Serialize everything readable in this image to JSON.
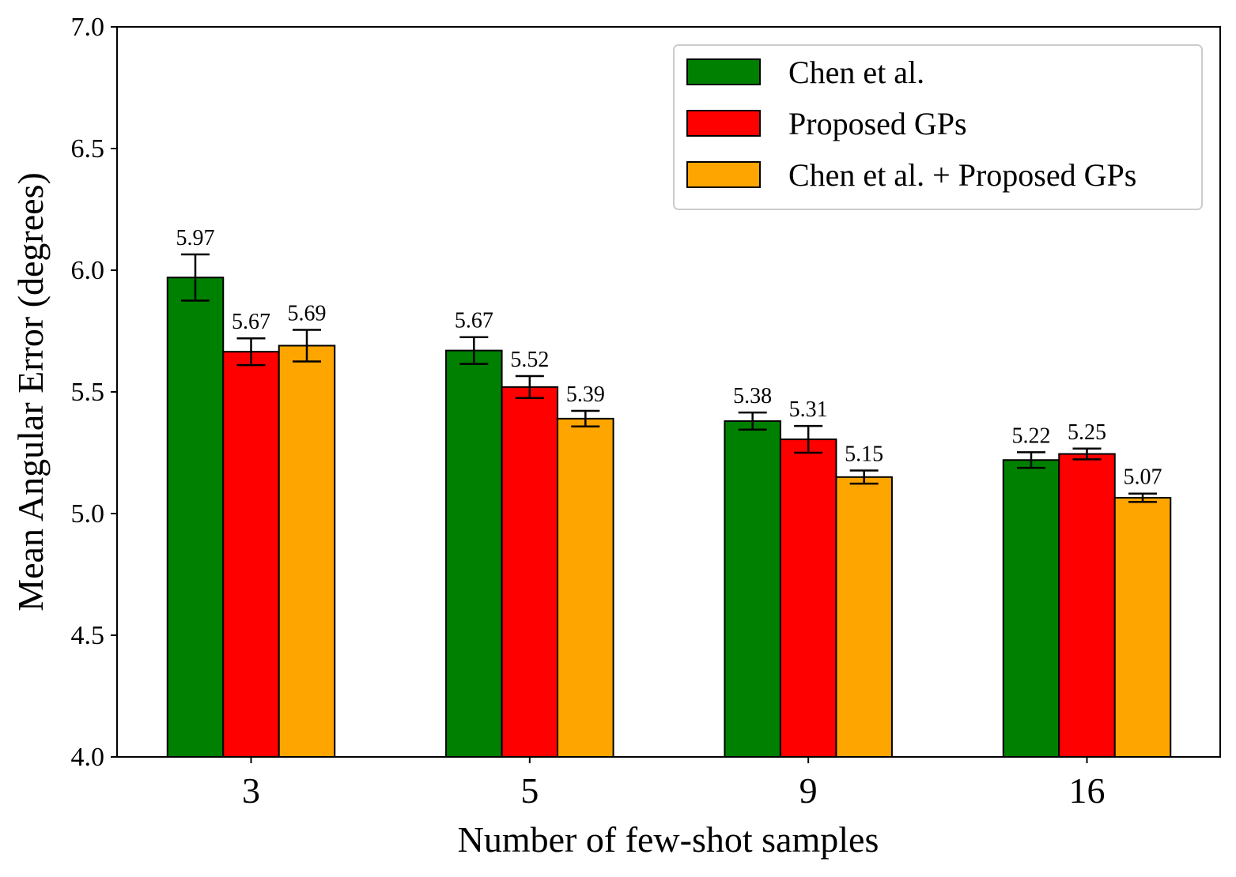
{
  "chart_data": {
    "type": "bar",
    "title": "",
    "xlabel": "Number of few-shot samples",
    "ylabel": "Mean Angular Error (degrees)",
    "ylim": [
      4.0,
      7.0
    ],
    "yticks": [
      "4.0",
      "4.5",
      "5.0",
      "5.5",
      "6.0",
      "6.5",
      "7.0"
    ],
    "categories": [
      "3",
      "5",
      "9",
      "16"
    ],
    "legend_position": "top-right",
    "series": [
      {
        "name": "Chen et al.",
        "color": "#008000",
        "values": [
          5.97,
          5.67,
          5.38,
          5.22
        ],
        "labels": [
          "5.97",
          "5.67",
          "5.38",
          "5.22"
        ],
        "errors": [
          0.095,
          0.055,
          0.035,
          0.032
        ]
      },
      {
        "name": "Proposed GPs",
        "color": "#ff0000",
        "values": [
          5.665,
          5.52,
          5.305,
          5.245
        ],
        "labels": [
          "5.67",
          "5.52",
          "5.31",
          "5.25"
        ],
        "errors": [
          0.055,
          0.045,
          0.055,
          0.022
        ]
      },
      {
        "name": "Chen et al. + Proposed GPs",
        "color": "#ffa500",
        "values": [
          5.69,
          5.39,
          5.15,
          5.065
        ],
        "labels": [
          "5.69",
          "5.39",
          "5.15",
          "5.07"
        ],
        "errors": [
          0.065,
          0.032,
          0.027,
          0.017
        ]
      }
    ]
  }
}
